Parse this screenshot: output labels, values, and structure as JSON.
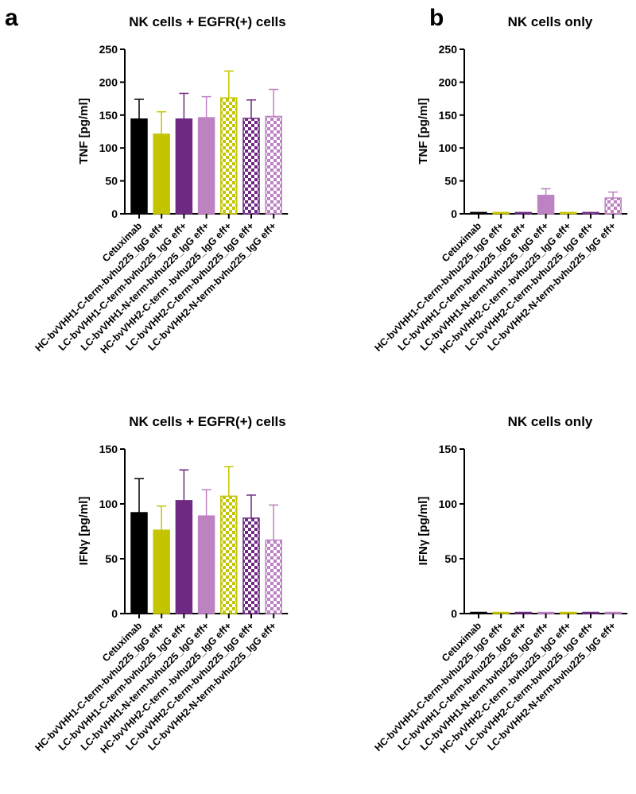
{
  "figure": {
    "label_a": "a",
    "label_b": "b"
  },
  "chart_data": [
    {
      "type": "bar",
      "title": "NK cells + EGFR(+) cells",
      "ylabel": "TNF [pg/ml]",
      "xlabel": "",
      "ylim": [
        0,
        250
      ],
      "yticks": [
        0,
        50,
        100,
        150,
        200,
        250
      ],
      "categories": [
        "Cetuximab",
        "HC-bvVHH1-C-term-bvhu225_IgG eff+",
        "LC-bvVHH1-C-term-bvhu225_IgG eff+",
        "LC-bvVHH1-N-term-bvhu225_IgG eff+",
        "HC-bvVHH2-C-term -bvhu225_IgG eff+",
        "LC-bvVHH2-C-term-bvhu225_IgG eff+",
        "LC-bvVHH2-N-term-bvhu225_IgG eff+"
      ],
      "values": [
        144,
        121,
        144,
        146,
        176,
        145,
        148
      ],
      "errors": [
        30,
        34,
        39,
        32,
        41,
        28,
        41
      ]
    },
    {
      "type": "bar",
      "title": "NK cells only",
      "ylabel": "TNF [pg/ml]",
      "xlabel": "",
      "ylim": [
        0,
        250
      ],
      "yticks": [
        0,
        50,
        100,
        150,
        200,
        250
      ],
      "categories": [
        "Cetuximab",
        "HC-bvVHH1-C-term-bvhu225_IgG eff+",
        "LC-bvVHH1-C-term-bvhu225_IgG eff+",
        "LC-bvVHH1-N-term-bvhu225_IgG eff+",
        "HC-bvVHH2-C-term -bvhu225_IgG eff+",
        "LC-bvVHH2-C-term-bvhu225_IgG eff+",
        "LC-bvVHH2-N-term-bvhu225_IgG eff+"
      ],
      "values": [
        2,
        2,
        2,
        28,
        2,
        2,
        24
      ],
      "errors": [
        0,
        0,
        0,
        10,
        0,
        0,
        9
      ]
    },
    {
      "type": "bar",
      "title": "NK cells + EGFR(+) cells",
      "ylabel": "IFNγ [pg/ml]",
      "xlabel": "",
      "ylim": [
        0,
        150
      ],
      "yticks": [
        0,
        50,
        100,
        150
      ],
      "categories": [
        "Cetuximab",
        "HC-bvVHH1-C-term-bvhu225_IgG eff+",
        "LC-bvVHH1-C-term-bvhu225_IgG eff+",
        "LC-bvVHH1-N-term-bvhu225_IgG eff+",
        "HC-bvVHH2-C-term -bvhu225_IgG eff+",
        "LC-bvVHH2-C-term-bvhu225_IgG eff+",
        "LC-bvVHH2-N-term-bvhu225_IgG eff+"
      ],
      "values": [
        92,
        76,
        103,
        89,
        107,
        87,
        67
      ],
      "errors": [
        31,
        22,
        28,
        24,
        27,
        21,
        32
      ]
    },
    {
      "type": "bar",
      "title": "NK cells only",
      "ylabel": "IFNγ [pg/ml]",
      "xlabel": "",
      "ylim": [
        0,
        150
      ],
      "yticks": [
        0,
        50,
        100,
        150
      ],
      "categories": [
        "Cetuximab",
        "HC-bvVHH1-C-term-bvhu225_IgG eff+",
        "LC-bvVHH1-C-term-bvhu225_IgG eff+",
        "LC-bvVHH1-N-term-bvhu225_IgG eff+",
        "HC-bvVHH2-C-term -bvhu225_IgG eff+",
        "LC-bvVHH2-C-term-bvhu225_IgG eff+",
        "LC-bvVHH2-N-term-bvhu225_IgG eff+"
      ],
      "values": [
        1,
        1,
        1,
        1,
        1,
        1,
        1
      ],
      "errors": [
        0,
        0,
        0,
        0,
        0,
        0,
        0
      ]
    }
  ],
  "bar_styles": [
    {
      "color": "#000000",
      "pattern": "solid"
    },
    {
      "color": "#c4c400",
      "pattern": "solid"
    },
    {
      "color": "#6e2a82",
      "pattern": "solid"
    },
    {
      "color": "#bd82c2",
      "pattern": "solid"
    },
    {
      "color": "#c4c400",
      "pattern": "checker"
    },
    {
      "color": "#6e2a82",
      "pattern": "checker"
    },
    {
      "color": "#bd82c2",
      "pattern": "checker"
    }
  ]
}
